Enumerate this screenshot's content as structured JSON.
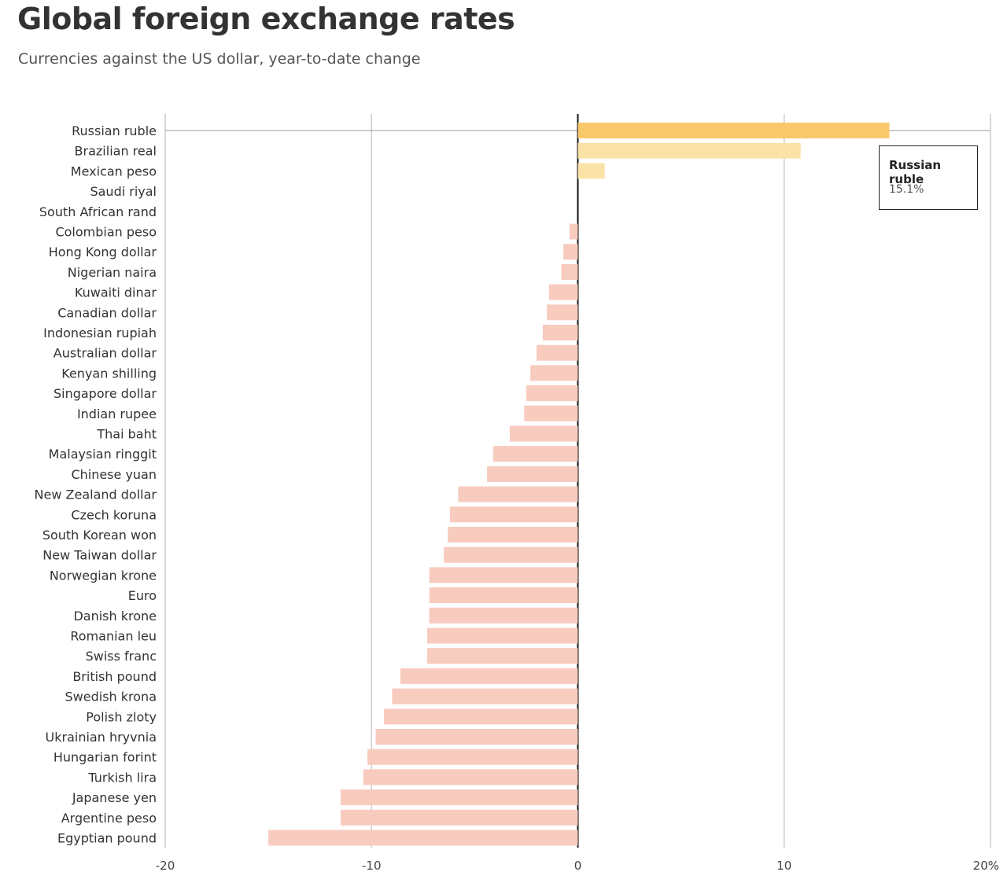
{
  "header": {
    "title": "Global foreign exchange rates",
    "subtitle": "Currencies against the US dollar, year-to-date change"
  },
  "tooltip": {
    "name": "Russian ruble",
    "value": "15.1%"
  },
  "colors": {
    "positive_highlight": "#f9c86b",
    "positive": "#fbe3a8",
    "negative": "#f8cbbf",
    "grid": "#cccccc",
    "zero_line": "#111111"
  },
  "chart_data": {
    "type": "bar",
    "orientation": "horizontal",
    "title": "Global foreign exchange rates",
    "subtitle": "Currencies against the US dollar, year-to-date change",
    "xlabel": "",
    "ylabel": "",
    "xlim": [
      -20,
      20
    ],
    "x_ticks": [
      -20,
      -10,
      0,
      10,
      20
    ],
    "x_tick_labels": [
      "-20",
      "-10",
      "0",
      "10",
      "20%"
    ],
    "grid": true,
    "highlighted": "Russian ruble",
    "categories": [
      "Russian ruble",
      "Brazilian real",
      "Mexican peso",
      "Saudi riyal",
      "South African rand",
      "Colombian peso",
      "Hong Kong dollar",
      "Nigerian naira",
      "Kuwaiti dinar",
      "Canadian dollar",
      "Indonesian rupiah",
      "Australian dollar",
      "Kenyan shilling",
      "Singapore dollar",
      "Indian rupee",
      "Thai baht",
      "Malaysian ringgit",
      "Chinese yuan",
      "New Zealand dollar",
      "Czech koruna",
      "South Korean won",
      "New Taiwan dollar",
      "Norwegian krone",
      "Euro",
      "Danish krone",
      "Romanian leu",
      "Swiss franc",
      "British pound",
      "Swedish krona",
      "Polish zloty",
      "Ukrainian hryvnia",
      "Hungarian forint",
      "Turkish lira",
      "Japanese yen",
      "Argentine peso",
      "Egyptian pound"
    ],
    "values": [
      15.1,
      10.8,
      1.3,
      0.0,
      0.0,
      -0.4,
      -0.7,
      -0.8,
      -1.4,
      -1.5,
      -1.7,
      -2.0,
      -2.3,
      -2.5,
      -2.6,
      -3.3,
      -4.1,
      -4.4,
      -5.8,
      -6.2,
      -6.3,
      -6.5,
      -7.2,
      -7.2,
      -7.2,
      -7.3,
      -7.3,
      -8.6,
      -9.0,
      -9.4,
      -9.8,
      -10.2,
      -10.4,
      -11.5,
      -11.5,
      -15.0
    ]
  }
}
